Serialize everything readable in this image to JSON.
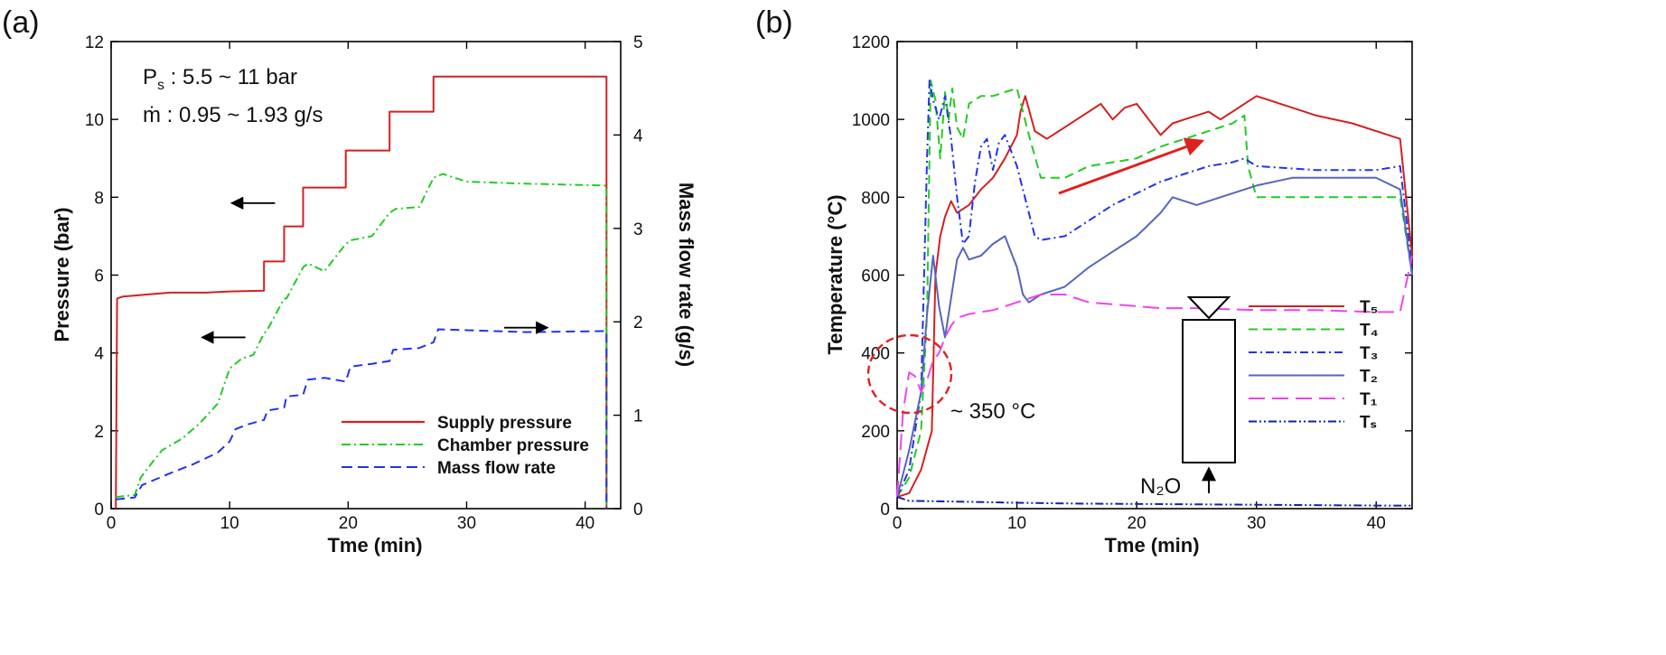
{
  "figure": {
    "panels": [
      "(a)",
      "(b)"
    ]
  },
  "chart_data": [
    {
      "type": "line",
      "panel_label": "(a)",
      "title": "",
      "xlabel": "Tme (min)",
      "ylabel": "Pressure (bar)",
      "y2label": "Mass flow rate (g/s)",
      "xlim": [
        0,
        43
      ],
      "ylim": [
        0,
        12
      ],
      "y2lim": [
        0,
        5
      ],
      "xticks": [
        0,
        10,
        20,
        30,
        40
      ],
      "yticks": [
        0,
        2,
        4,
        6,
        8,
        10,
        12
      ],
      "y2ticks": [
        0,
        1,
        2,
        3,
        4,
        5
      ],
      "annotations": {
        "ps_symbol": "P",
        "ps_sub": "s",
        "ps_range": " : 5.5 ~ 11 bar",
        "mdot_symbol": "ṁ",
        "mdot_range": " : 0.95 ~ 1.93 g/s"
      },
      "arrows": [
        {
          "points_to": "left",
          "at": [
            12,
            7.85
          ]
        },
        {
          "points_to": "left",
          "at": [
            9.5,
            4.4
          ]
        },
        {
          "points_to": "right",
          "at": [
            35,
            4.65
          ]
        }
      ],
      "legend_position": "bottom-right",
      "series": [
        {
          "name": "Supply pressure",
          "axis": "left",
          "color": "#d42020",
          "dash": "solid",
          "x": [
            0.4,
            0.5,
            1,
            3,
            5,
            8,
            10,
            12.9,
            12.9,
            14.6,
            14.6,
            16.2,
            16.2,
            19.8,
            19.8,
            23.5,
            23.5,
            27.2,
            27.2,
            33,
            41.8,
            41.8
          ],
          "y": [
            0,
            5.4,
            5.45,
            5.5,
            5.55,
            5.55,
            5.58,
            5.6,
            6.35,
            6.35,
            7.25,
            7.25,
            8.25,
            8.25,
            9.2,
            9.2,
            10.2,
            10.2,
            11.1,
            11.1,
            11.1,
            0
          ]
        },
        {
          "name": "Chamber pressure",
          "axis": "left",
          "color": "#22cc22",
          "dash": "dashdot",
          "x": [
            0.4,
            2,
            2.5,
            3.5,
            4.3,
            6,
            7.5,
            9,
            10,
            11,
            12,
            12.9,
            13.2,
            14.6,
            14.8,
            16.2,
            16.6,
            18,
            19.8,
            20.3,
            22,
            23.5,
            24,
            26,
            27.2,
            28,
            30,
            35,
            41.8,
            41.8
          ],
          "y": [
            0.3,
            0.35,
            0.8,
            1.2,
            1.5,
            1.8,
            2.2,
            2.7,
            3.6,
            3.85,
            3.95,
            4.5,
            4.6,
            5.4,
            5.4,
            6.2,
            6.3,
            6.1,
            6.8,
            6.9,
            7.0,
            7.6,
            7.7,
            7.75,
            8.5,
            8.6,
            8.4,
            8.35,
            8.3,
            0
          ]
        },
        {
          "name": "Mass flow rate",
          "axis": "right",
          "color": "#2233ee",
          "dash": "dashed",
          "x": [
            0.4,
            2,
            2.6,
            3.5,
            5,
            7,
            9,
            10,
            10.5,
            11.5,
            12.9,
            13.2,
            14.6,
            14.8,
            16.2,
            16.6,
            18,
            19.8,
            20.2,
            22,
            23.5,
            23.8,
            26,
            27.2,
            27.6,
            30,
            35,
            41.8,
            41.8
          ],
          "y": [
            0.1,
            0.12,
            0.25,
            0.3,
            0.38,
            0.48,
            0.6,
            0.72,
            0.85,
            0.9,
            0.95,
            1.05,
            1.08,
            1.2,
            1.22,
            1.38,
            1.4,
            1.36,
            1.52,
            1.55,
            1.58,
            1.7,
            1.72,
            1.78,
            1.92,
            1.91,
            1.89,
            1.9,
            0
          ]
        }
      ]
    },
    {
      "type": "line",
      "panel_label": "(b)",
      "title": "",
      "xlabel": "Tme (min)",
      "ylabel": "Temperature (°C)",
      "xlim": [
        0,
        43
      ],
      "ylim": [
        0,
        1200
      ],
      "xticks": [
        0,
        10,
        20,
        30,
        40
      ],
      "yticks": [
        0,
        200,
        400,
        600,
        800,
        1000,
        1200
      ],
      "annotations": {
        "circle_label": "~ 350 °C",
        "inlet_label": "N₂O"
      },
      "arrows": [
        {
          "from": [
            13.5,
            810
          ],
          "to": [
            25.5,
            945
          ]
        }
      ],
      "legend_position": "right",
      "series": [
        {
          "name": "T₅",
          "color": "#d42020",
          "dash": "solid",
          "x": [
            0,
            1,
            2,
            2.9,
            3.2,
            3.6,
            4,
            4.5,
            5,
            6,
            7,
            8,
            9,
            10,
            10.3,
            10.7,
            11.5,
            12,
            12.5,
            14,
            16,
            17,
            18,
            19,
            20,
            21,
            22,
            23,
            24,
            25,
            26,
            27,
            28,
            29,
            30,
            32,
            35,
            38,
            41,
            42,
            43
          ],
          "y": [
            30,
            40,
            100,
            200,
            600,
            700,
            750,
            790,
            760,
            780,
            820,
            850,
            900,
            960,
            1020,
            1060,
            970,
            960,
            950,
            980,
            1020,
            1040,
            1000,
            1030,
            1040,
            1000,
            960,
            990,
            1000,
            1010,
            1020,
            1000,
            1020,
            1040,
            1060,
            1040,
            1010,
            990,
            960,
            950,
            650
          ]
        },
        {
          "name": "T₄",
          "color": "#22cc22",
          "dash": "dashed",
          "x": [
            0,
            1,
            2,
            2.5,
            2.8,
            3.2,
            3.6,
            4,
            4.3,
            4.6,
            5,
            5.5,
            6,
            7,
            8,
            9,
            10,
            11,
            12,
            14,
            16,
            18,
            20,
            22,
            24,
            26,
            28,
            29,
            29.3,
            30,
            35,
            40,
            42,
            43
          ],
          "y": [
            30,
            80,
            200,
            500,
            1100,
            1050,
            900,
            1070,
            1000,
            1080,
            980,
            950,
            1040,
            1060,
            1060,
            1070,
            1080,
            960,
            850,
            850,
            880,
            890,
            900,
            930,
            950,
            970,
            990,
            1010,
            880,
            800,
            800,
            800,
            800,
            600
          ]
        },
        {
          "name": "T₃",
          "color": "#2233ee",
          "dash": "dashdot",
          "x": [
            0,
            1,
            2,
            2.5,
            2.7,
            3,
            3.5,
            4,
            4.5,
            5,
            5.5,
            6,
            6.5,
            7,
            7.5,
            8,
            8.5,
            9,
            10,
            10.5,
            11,
            11.5,
            12,
            14,
            16,
            18,
            20,
            22,
            24,
            26,
            28,
            29,
            30,
            35,
            40,
            42,
            43
          ],
          "y": [
            30,
            100,
            300,
            900,
            1100,
            1050,
            1000,
            1060,
            950,
            800,
            680,
            700,
            840,
            930,
            950,
            870,
            940,
            960,
            880,
            820,
            760,
            700,
            690,
            700,
            740,
            780,
            810,
            840,
            860,
            880,
            890,
            900,
            880,
            870,
            870,
            880,
            620
          ]
        },
        {
          "name": "T₂",
          "color": "#5566bb",
          "dash": "solid",
          "x": [
            0,
            1,
            2,
            2.5,
            3,
            3.5,
            4,
            5,
            5.5,
            6,
            7,
            8,
            9,
            9.5,
            10,
            10.5,
            11,
            12,
            14,
            16,
            18,
            20,
            22,
            23,
            25,
            27,
            30,
            33,
            36,
            40,
            42,
            43
          ],
          "y": [
            30,
            150,
            300,
            500,
            650,
            520,
            440,
            640,
            670,
            640,
            650,
            680,
            700,
            660,
            620,
            550,
            530,
            550,
            570,
            620,
            660,
            700,
            760,
            800,
            780,
            800,
            830,
            850,
            850,
            850,
            820,
            600
          ]
        },
        {
          "name": "T₁",
          "color": "#ee44ee",
          "dash": "longdash",
          "x": [
            0,
            0.5,
            1,
            1.5,
            2,
            2.5,
            3,
            3.5,
            4,
            4.5,
            5,
            6,
            8,
            10,
            12,
            14,
            16,
            18,
            20,
            22,
            25,
            30,
            35,
            40,
            42,
            43
          ],
          "y": [
            30,
            250,
            350,
            340,
            300,
            330,
            380,
            400,
            440,
            470,
            490,
            500,
            510,
            530,
            550,
            550,
            530,
            525,
            520,
            515,
            515,
            510,
            510,
            505,
            505,
            650
          ]
        },
        {
          "name": "Tₛ",
          "color": "#1122aa",
          "dash": "dashdotdot",
          "x": [
            0,
            0.5,
            1,
            5,
            10,
            15,
            20,
            30,
            40,
            43
          ],
          "y": [
            30,
            25,
            20,
            18,
            15,
            13,
            12,
            10,
            8,
            8
          ]
        }
      ]
    }
  ]
}
